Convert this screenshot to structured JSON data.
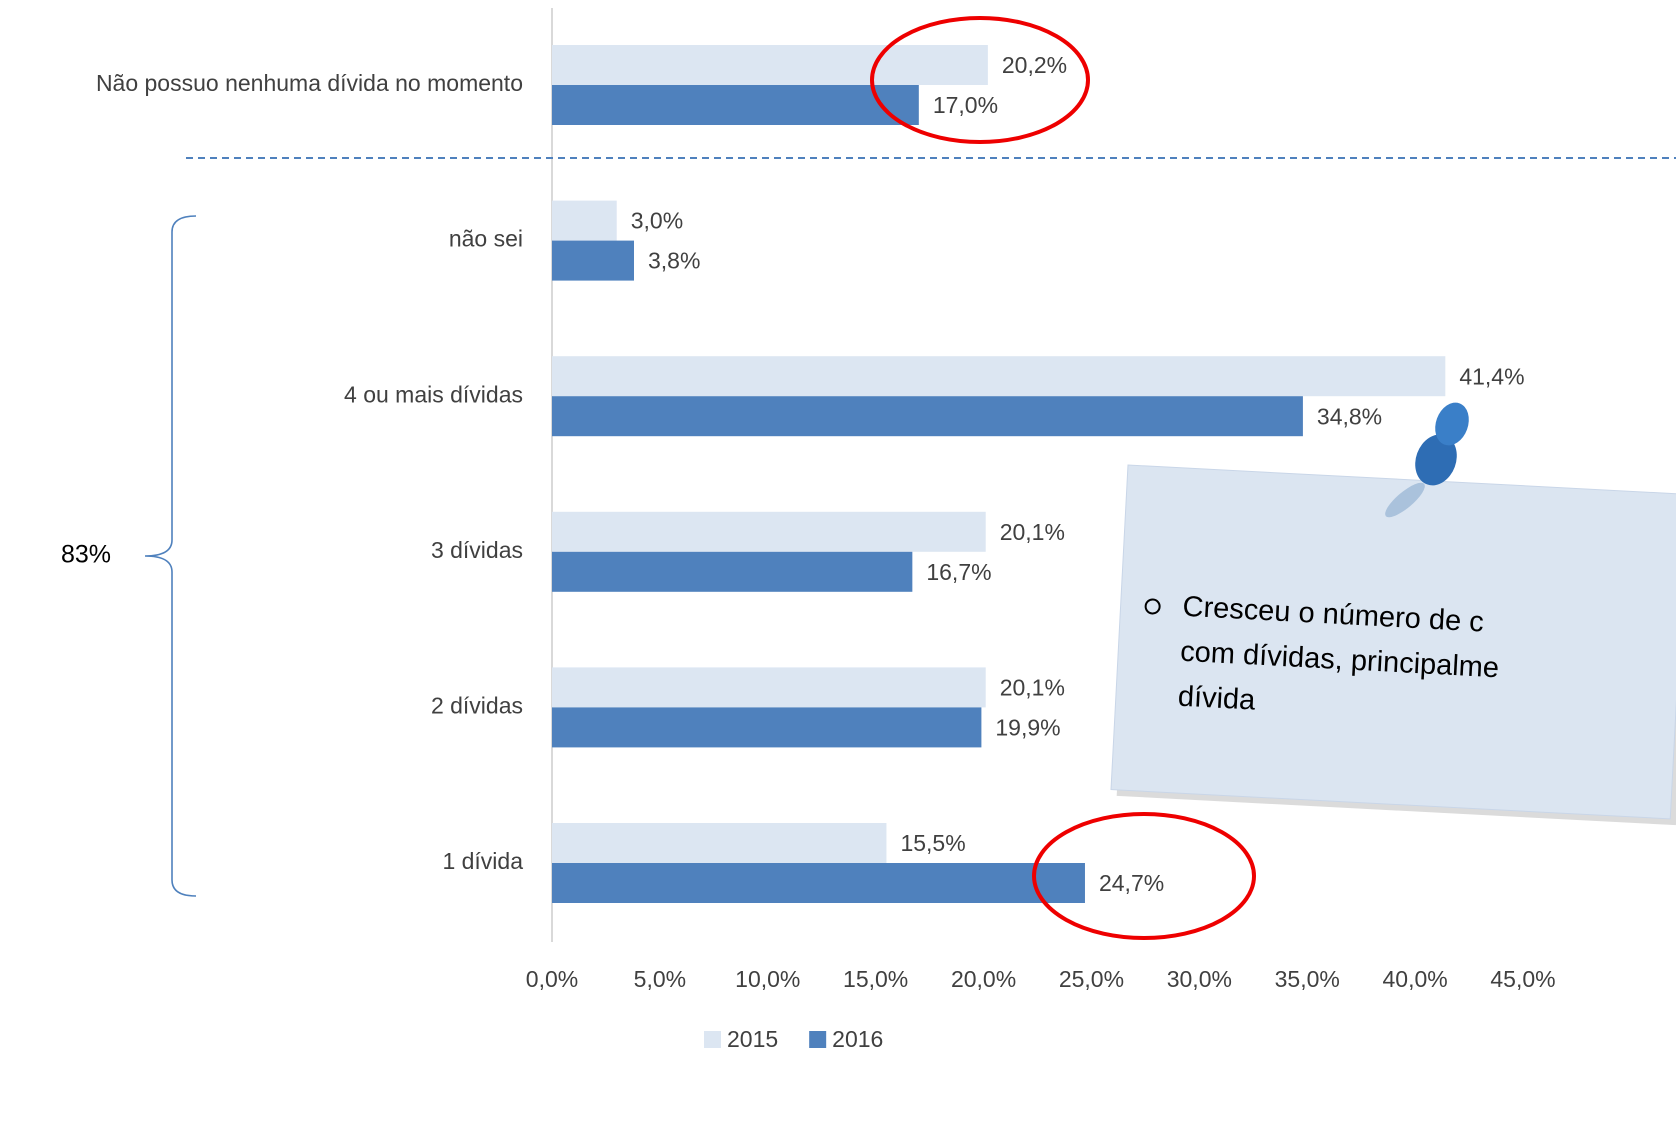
{
  "chart_data": {
    "type": "bar",
    "orientation": "horizontal",
    "categories": [
      "Não possuo nenhuma dívida no momento",
      "não sei",
      "4 ou mais dívidas",
      "3 dívidas",
      "2 dívidas",
      "1 dívida"
    ],
    "series": [
      {
        "name": "2015",
        "color": "#dce6f2",
        "values": [
          20.2,
          3.0,
          41.4,
          20.1,
          20.1,
          15.5
        ],
        "value_labels": [
          "20,2%",
          "3,0%",
          "41,4%",
          "20,1%",
          "20,1%",
          "15,5%"
        ]
      },
      {
        "name": "2016",
        "color": "#4f81bd",
        "values": [
          17.0,
          3.8,
          34.8,
          16.7,
          19.9,
          24.7
        ],
        "value_labels": [
          "17,0%",
          "3,8%",
          "34,8%",
          "16,7%",
          "19,9%",
          "24,7%"
        ]
      }
    ],
    "xlim": [
      0,
      45
    ],
    "xticks": [
      {
        "value": 0,
        "label": "0,0%"
      },
      {
        "value": 5,
        "label": "5,0%"
      },
      {
        "value": 10,
        "label": "10,0%"
      },
      {
        "value": 15,
        "label": "15,0%"
      },
      {
        "value": 20,
        "label": "20,0%"
      },
      {
        "value": 25,
        "label": "25,0%"
      },
      {
        "value": 30,
        "label": "30,0%"
      },
      {
        "value": 35,
        "label": "35,0%"
      },
      {
        "value": 40,
        "label": "40,0%"
      },
      {
        "value": 45,
        "label": "45,0%"
      }
    ],
    "grid": false,
    "legend": "bottom",
    "annotations": {
      "bracket_label": "83%",
      "note": [
        "Cresceu o número de c",
        "com dívidas, principalme",
        "dívida"
      ]
    }
  }
}
